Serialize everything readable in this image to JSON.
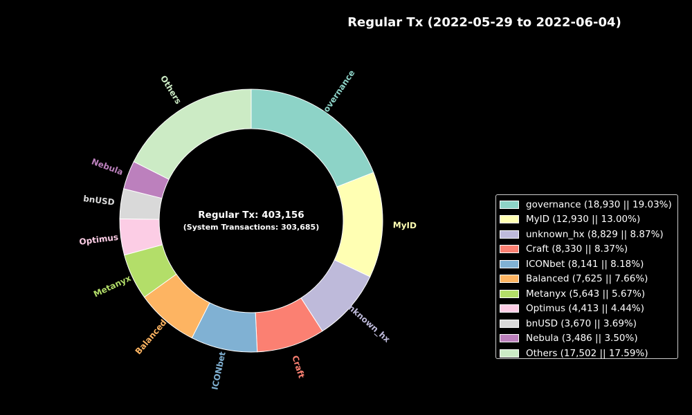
{
  "chart_data": {
    "type": "pie",
    "variant": "donut",
    "title": "Regular Tx (2022-05-29 to 2022-06-04)",
    "center_text": {
      "line1": "Regular Tx: 403,156",
      "line2": "(System Transactions: 303,685)"
    },
    "slices": [
      {
        "label": "governance",
        "value": 18930,
        "percent": 19.03,
        "color": "#8dd3c7",
        "legend": "governance (18,930 || 19.03%)"
      },
      {
        "label": "MyID",
        "value": 12930,
        "percent": 13.0,
        "color": "#ffffb3",
        "legend": "MyID (12,930 || 13.00%)"
      },
      {
        "label": "unknown_hx",
        "value": 8829,
        "percent": 8.87,
        "color": "#bebada",
        "legend": "unknown_hx (8,829 || 8.87%)"
      },
      {
        "label": "Craft",
        "value": 8330,
        "percent": 8.37,
        "color": "#fb8072",
        "legend": "Craft (8,330 || 8.37%)"
      },
      {
        "label": "ICONbet",
        "value": 8141,
        "percent": 8.18,
        "color": "#80b1d3",
        "legend": "ICONbet (8,141 || 8.18%)"
      },
      {
        "label": "Balanced",
        "value": 7625,
        "percent": 7.66,
        "color": "#fdb462",
        "legend": "Balanced (7,625 || 7.66%)"
      },
      {
        "label": "Metanyx",
        "value": 5643,
        "percent": 5.67,
        "color": "#b3de69",
        "legend": "Metanyx (5,643 || 5.67%)"
      },
      {
        "label": "Optimus",
        "value": 4413,
        "percent": 4.44,
        "color": "#fccde5",
        "legend": "Optimus (4,413 || 4.44%)"
      },
      {
        "label": "bnUSD",
        "value": 3670,
        "percent": 3.69,
        "color": "#d9d9d9",
        "legend": "bnUSD (3,670 || 3.69%)"
      },
      {
        "label": "Nebula",
        "value": 3486,
        "percent": 3.5,
        "color": "#bc80bd",
        "legend": "Nebula (3,486 || 3.50%)"
      },
      {
        "label": "Others",
        "value": 17502,
        "percent": 17.59,
        "color": "#ccebc5",
        "legend": "Others (17,502 || 17.59%)"
      }
    ],
    "start_angle": "top",
    "direction": "clockwise",
    "legend_position": "right"
  }
}
